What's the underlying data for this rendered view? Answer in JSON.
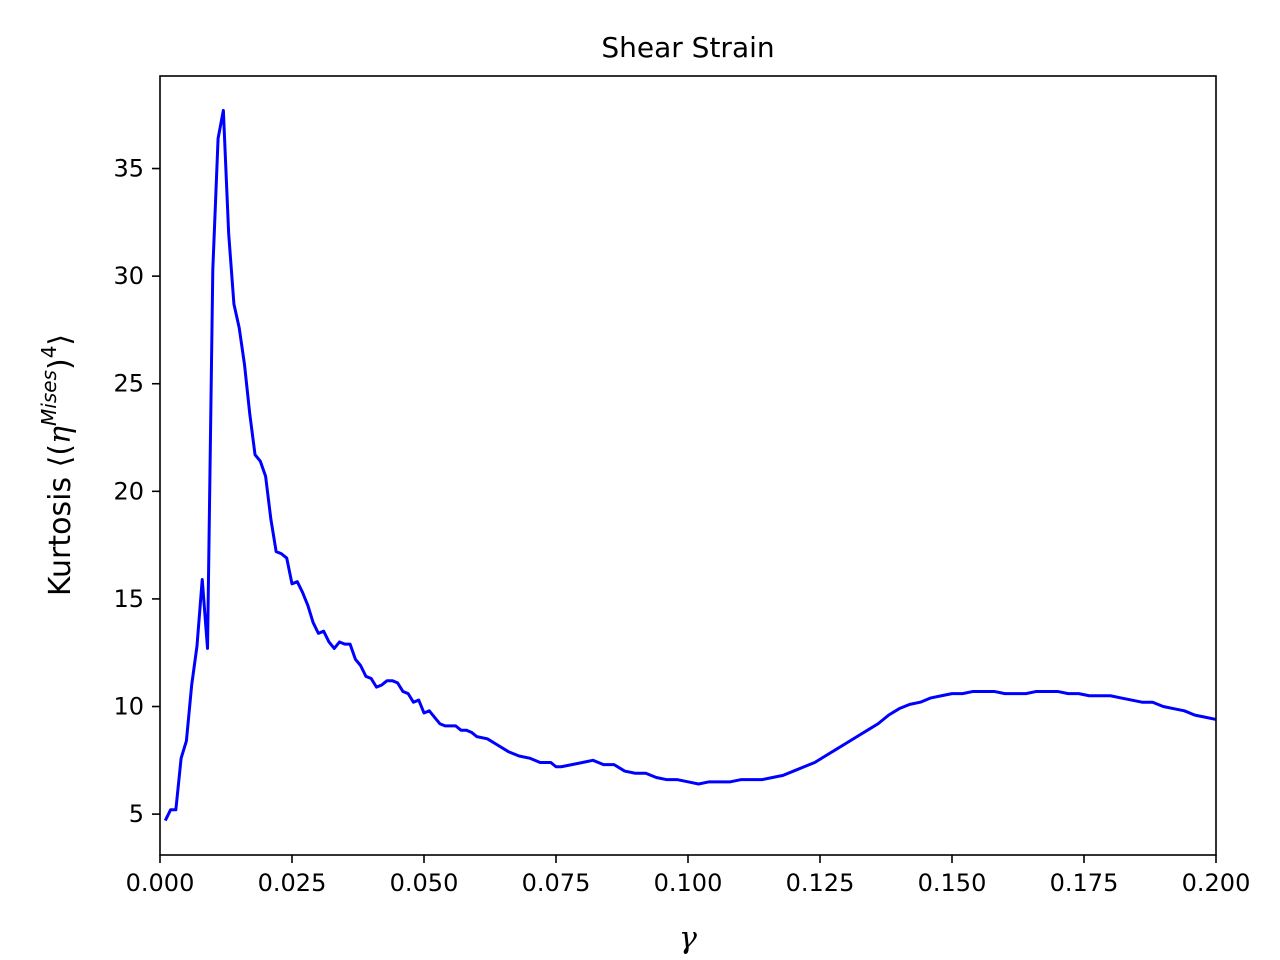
{
  "chart_data": {
    "type": "line",
    "title": "Shear Strain",
    "xlabel": "γ",
    "ylabel": {
      "prefix": "Kurtosis ⟨(",
      "eta": "η",
      "superscript": "Mises",
      "suffix": ")",
      "power": "4",
      "close": "⟩"
    },
    "xlim": [
      0.0,
      0.2
    ],
    "ylim": [
      3.1,
      39.3
    ],
    "xticks": [
      0.0,
      0.025,
      0.05,
      0.075,
      0.1,
      0.125,
      0.15,
      0.175,
      0.2
    ],
    "xtick_labels": [
      "0.000",
      "0.025",
      "0.050",
      "0.075",
      "0.100",
      "0.125",
      "0.150",
      "0.175",
      "0.200"
    ],
    "yticks": [
      5,
      10,
      15,
      20,
      25,
      30,
      35
    ],
    "ytick_labels": [
      "5",
      "10",
      "15",
      "20",
      "25",
      "30",
      "35"
    ],
    "grid": false,
    "series": [
      {
        "color": "#0000ff",
        "x": [
          0.001,
          0.002,
          0.003,
          0.004,
          0.005,
          0.006,
          0.007,
          0.008,
          0.009,
          0.01,
          0.011,
          0.012,
          0.013,
          0.014,
          0.015,
          0.016,
          0.017,
          0.018,
          0.019,
          0.02,
          0.021,
          0.022,
          0.023,
          0.024,
          0.025,
          0.026,
          0.027,
          0.028,
          0.029,
          0.03,
          0.031,
          0.032,
          0.033,
          0.034,
          0.035,
          0.036,
          0.037,
          0.038,
          0.039,
          0.04,
          0.041,
          0.042,
          0.043,
          0.044,
          0.045,
          0.046,
          0.047,
          0.048,
          0.049,
          0.05,
          0.051,
          0.052,
          0.053,
          0.054,
          0.055,
          0.056,
          0.057,
          0.058,
          0.059,
          0.06,
          0.062,
          0.064,
          0.066,
          0.068,
          0.07,
          0.072,
          0.074,
          0.075,
          0.076,
          0.078,
          0.08,
          0.082,
          0.084,
          0.086,
          0.088,
          0.09,
          0.092,
          0.094,
          0.096,
          0.098,
          0.1,
          0.102,
          0.104,
          0.106,
          0.108,
          0.11,
          0.112,
          0.114,
          0.116,
          0.118,
          0.12,
          0.122,
          0.124,
          0.126,
          0.128,
          0.13,
          0.132,
          0.134,
          0.136,
          0.138,
          0.14,
          0.142,
          0.144,
          0.146,
          0.148,
          0.15,
          0.152,
          0.154,
          0.156,
          0.158,
          0.16,
          0.162,
          0.164,
          0.166,
          0.168,
          0.17,
          0.172,
          0.174,
          0.176,
          0.178,
          0.18,
          0.182,
          0.184,
          0.186,
          0.188,
          0.19,
          0.192,
          0.194,
          0.196,
          0.198,
          0.2
        ],
        "y": [
          4.7,
          5.2,
          5.2,
          7.6,
          8.4,
          11.0,
          12.8,
          15.9,
          12.7,
          30.3,
          36.4,
          37.7,
          32.0,
          28.7,
          27.6,
          25.9,
          23.6,
          21.7,
          21.4,
          20.7,
          18.7,
          17.2,
          17.1,
          16.9,
          15.7,
          15.8,
          15.3,
          14.7,
          13.9,
          13.4,
          13.5,
          13.0,
          12.7,
          13.0,
          12.9,
          12.9,
          12.2,
          11.9,
          11.4,
          11.3,
          10.9,
          11.0,
          11.2,
          11.2,
          11.1,
          10.7,
          10.6,
          10.2,
          10.3,
          9.7,
          9.8,
          9.5,
          9.2,
          9.1,
          9.1,
          9.1,
          8.9,
          8.9,
          8.8,
          8.6,
          8.5,
          8.2,
          7.9,
          7.7,
          7.6,
          7.4,
          7.4,
          7.2,
          7.2,
          7.3,
          7.4,
          7.5,
          7.3,
          7.3,
          7.0,
          6.9,
          6.9,
          6.7,
          6.6,
          6.6,
          6.5,
          6.4,
          6.5,
          6.5,
          6.5,
          6.6,
          6.6,
          6.6,
          6.7,
          6.8,
          7.0,
          7.2,
          7.4,
          7.7,
          8.0,
          8.3,
          8.6,
          8.9,
          9.2,
          9.6,
          9.9,
          10.1,
          10.2,
          10.4,
          10.5,
          10.6,
          10.6,
          10.7,
          10.7,
          10.7,
          10.6,
          10.6,
          10.6,
          10.7,
          10.7,
          10.7,
          10.6,
          10.6,
          10.5,
          10.5,
          10.5,
          10.4,
          10.3,
          10.2,
          10.2,
          10.0,
          9.9,
          9.8,
          9.6,
          9.5,
          9.4
        ]
      }
    ]
  }
}
